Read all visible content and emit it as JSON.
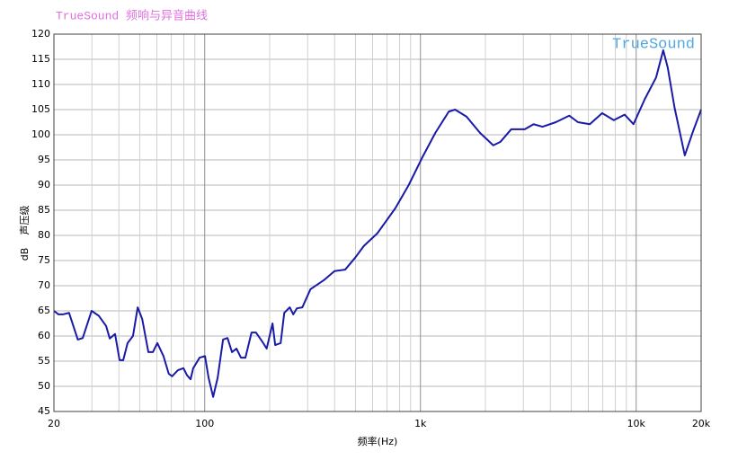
{
  "chart_data": {
    "type": "line",
    "title": "TrueSound 频响与异音曲线",
    "watermark": "TrueSound",
    "xlabel": "频率(Hz)",
    "ylabel": "声压级",
    "yunit": "dB",
    "xscale": "log",
    "grid": true,
    "color": "#1a1aa8",
    "x": [
      20,
      21,
      22,
      23.5,
      25.8,
      27.2,
      29.9,
      32.3,
      34.9,
      36.3,
      38.4,
      40.3,
      41.9,
      43.9,
      46.5,
      48.9,
      51.3,
      54.8,
      57.5,
      60.3,
      64.4,
      68.1,
      70.6,
      75.1,
      79.7,
      82.8,
      86,
      88.4,
      94.7,
      100.3,
      104.2,
      109.4,
      114.8,
      121.6,
      127.5,
      133.8,
      140.3,
      147.2,
      154.4,
      164.8,
      172.7,
      184.8,
      193.7,
      206.2,
      212.2,
      224.9,
      233.7,
      247.8,
      257.3,
      267.4,
      283.5,
      309.1,
      356.6,
      399.5,
      447.8,
      496.8,
      546.6,
      630.9,
      764.9,
      882,
      1017,
      1173,
      1353,
      1446,
      1636,
      1886,
      2175,
      2349,
      2637,
      3045,
      3345,
      3678,
      4242,
      4892,
      5372,
      6094,
      6956,
      7875,
      8840,
      9715,
      10964,
      12370,
      13345,
      13997,
      15060,
      16800,
      18351,
      20000
    ],
    "values": [
      65,
      64.3,
      64.3,
      64.6,
      59.3,
      59.6,
      65,
      64,
      62,
      59.5,
      60.4,
      55.2,
      55.2,
      58.6,
      60,
      65.7,
      63.4,
      56.8,
      56.8,
      58.6,
      56,
      52.5,
      52,
      53.2,
      53.6,
      52.2,
      51.4,
      53.6,
      55.7,
      56,
      51.7,
      47.9,
      51.7,
      59.3,
      59.6,
      56.8,
      57.5,
      55.7,
      55.7,
      60.7,
      60.7,
      58.9,
      57.5,
      62.5,
      58.2,
      58.6,
      64.6,
      65.7,
      64.3,
      65.5,
      65.7,
      69.3,
      71.1,
      72.9,
      73.2,
      75.5,
      77.9,
      80.4,
      85.4,
      90,
      95.4,
      100.4,
      104.6,
      105,
      103.6,
      100.4,
      97.9,
      98.6,
      101.1,
      101.1,
      102.1,
      101.6,
      102.5,
      103.8,
      102.5,
      102.1,
      104.3,
      102.9,
      104,
      102.1,
      107.1,
      111.4,
      116.8,
      113.4,
      105.4,
      95.9,
      100.7,
      105
    ],
    "xlim": [
      20,
      20000
    ],
    "xticks": [
      20,
      100,
      {
        "value": 1000,
        "label": "1k"
      },
      {
        "value": 10000,
        "label": "10k"
      },
      {
        "value": 20000,
        "label": "20k"
      }
    ],
    "xgrid": [
      30,
      40,
      50,
      60,
      70,
      80,
      90,
      200,
      300,
      400,
      500,
      600,
      700,
      800,
      900,
      2000,
      3000,
      4000,
      5000,
      6000,
      7000,
      8000,
      9000
    ],
    "ylim": [
      45,
      120
    ],
    "yticks": [
      45,
      50,
      55,
      60,
      65,
      70,
      75,
      80,
      85,
      90,
      95,
      100,
      105,
      110,
      115,
      120
    ]
  }
}
